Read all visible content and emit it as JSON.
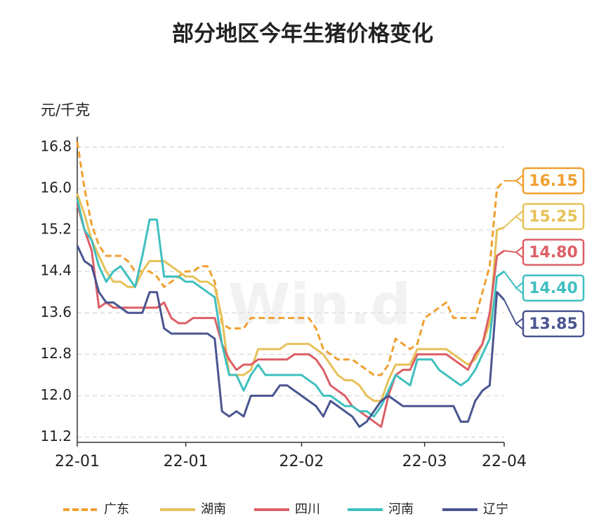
{
  "chart_data": {
    "type": "line",
    "title": "部分地区今年生猪价格变化",
    "y_label": "元/千克",
    "watermark": "Win.d",
    "categories": [
      "22-01",
      null,
      null,
      null,
      null,
      null,
      null,
      null,
      null,
      null,
      null,
      null,
      null,
      null,
      null,
      "22-01",
      null,
      null,
      null,
      null,
      null,
      null,
      null,
      null,
      null,
      null,
      null,
      null,
      null,
      null,
      null,
      "22-02",
      null,
      null,
      null,
      null,
      null,
      null,
      null,
      null,
      null,
      null,
      null,
      null,
      null,
      null,
      null,
      null,
      "22-03",
      null,
      null,
      null,
      null,
      null,
      null,
      null,
      null,
      null,
      null,
      "22-04"
    ],
    "ylim": [
      11.1,
      17.0
    ],
    "yticks": [
      11.2,
      {
        "value": 12,
        "label": "12.0"
      },
      12.8,
      13.6,
      14.4,
      15.2,
      {
        "value": 16,
        "label": "16.0"
      },
      16.8
    ],
    "grid": true,
    "legend": "bottom",
    "series": [
      {
        "name": "广东",
        "color": "#f0a030",
        "dash": true,
        "values": [
          16.9,
          16.0,
          15.3,
          14.9,
          14.7,
          14.7,
          14.7,
          14.6,
          14.4,
          14.4,
          14.4,
          14.3,
          14.1,
          14.2,
          14.3,
          14.4,
          14.4,
          14.5,
          14.5,
          14.2,
          13.4,
          13.3,
          13.3,
          13.3,
          13.5,
          13.5,
          13.5,
          13.5,
          13.5,
          13.5,
          13.5,
          13.5,
          13.5,
          13.3,
          12.9,
          12.8,
          12.7,
          12.7,
          12.7,
          12.6,
          12.5,
          12.4,
          12.4,
          12.6,
          13.1,
          13.0,
          12.9,
          13.0,
          13.5,
          13.6,
          13.7,
          13.8,
          13.5,
          13.5,
          13.5,
          13.5,
          14.0,
          14.5,
          16.0,
          16.15
        ],
        "value_labels": [
          null,
          null,
          null,
          null,
          null,
          null,
          null,
          null,
          null,
          null,
          null,
          null,
          null,
          null,
          null,
          null,
          null,
          null,
          null,
          null,
          null,
          null,
          null,
          null,
          null,
          null,
          null,
          null,
          null,
          null,
          null,
          null,
          null,
          null,
          null,
          null,
          null,
          null,
          null,
          null,
          null,
          null,
          null,
          null,
          null,
          null,
          null,
          null,
          null,
          null,
          null,
          null,
          null,
          null,
          null,
          null,
          null,
          null,
          null,
          "16.15"
        ]
      },
      {
        "name": "湖南",
        "color": "#e6c158",
        "dash": false,
        "values": [
          15.9,
          15.5,
          15.0,
          14.7,
          14.4,
          14.2,
          14.2,
          14.1,
          14.1,
          14.4,
          14.6,
          14.6,
          14.6,
          14.5,
          14.4,
          14.3,
          14.3,
          14.2,
          14.2,
          14.1,
          13.5,
          12.4,
          12.4,
          12.4,
          12.5,
          12.9,
          12.9,
          12.9,
          12.9,
          13.0,
          13.0,
          13.0,
          13.0,
          12.9,
          12.8,
          12.6,
          12.4,
          12.3,
          12.3,
          12.2,
          12.0,
          11.9,
          11.9,
          12.3,
          12.6,
          12.6,
          12.6,
          12.9,
          12.9,
          12.9,
          12.9,
          12.9,
          12.8,
          12.7,
          12.6,
          12.7,
          13.0,
          13.4,
          15.2,
          15.25
        ],
        "value_labels": [
          null,
          null,
          null,
          null,
          null,
          null,
          null,
          null,
          null,
          null,
          null,
          null,
          null,
          null,
          null,
          null,
          null,
          null,
          null,
          null,
          null,
          null,
          null,
          null,
          null,
          null,
          null,
          null,
          null,
          null,
          null,
          null,
          null,
          null,
          null,
          null,
          null,
          null,
          null,
          null,
          null,
          null,
          null,
          null,
          null,
          null,
          null,
          null,
          null,
          null,
          null,
          null,
          null,
          null,
          null,
          null,
          null,
          null,
          null,
          "15.25"
        ]
      },
      {
        "name": "四川",
        "color": "#dc5f66",
        "dash": false,
        "values": [
          15.7,
          15.2,
          14.8,
          13.7,
          13.8,
          13.7,
          13.7,
          13.7,
          13.7,
          13.7,
          13.7,
          13.7,
          13.8,
          13.5,
          13.4,
          13.4,
          13.5,
          13.5,
          13.5,
          13.5,
          13.0,
          12.7,
          12.5,
          12.6,
          12.6,
          12.7,
          12.7,
          12.7,
          12.7,
          12.7,
          12.8,
          12.8,
          12.8,
          12.7,
          12.5,
          12.2,
          12.1,
          12.0,
          11.8,
          11.7,
          11.6,
          11.5,
          11.4,
          12.0,
          12.4,
          12.5,
          12.5,
          12.8,
          12.8,
          12.8,
          12.8,
          12.8,
          12.7,
          12.6,
          12.5,
          12.8,
          13.0,
          13.6,
          14.7,
          14.8
        ],
        "value_labels": [
          null,
          null,
          null,
          null,
          null,
          null,
          null,
          null,
          null,
          null,
          null,
          null,
          null,
          null,
          null,
          null,
          null,
          null,
          null,
          null,
          null,
          null,
          null,
          null,
          null,
          null,
          null,
          null,
          null,
          null,
          null,
          null,
          null,
          null,
          null,
          null,
          null,
          null,
          null,
          null,
          null,
          null,
          null,
          null,
          null,
          null,
          null,
          null,
          null,
          null,
          null,
          null,
          null,
          null,
          null,
          null,
          null,
          null,
          null,
          "14.80"
        ]
      },
      {
        "name": "河南",
        "color": "#3fbfbf",
        "dash": false,
        "values": [
          15.8,
          15.2,
          15.0,
          14.5,
          14.2,
          14.4,
          14.5,
          14.3,
          14.1,
          14.7,
          15.4,
          15.4,
          14.3,
          14.3,
          14.3,
          14.2,
          14.2,
          14.1,
          14.0,
          13.9,
          13.0,
          12.4,
          12.4,
          12.1,
          12.4,
          12.6,
          12.4,
          12.4,
          12.4,
          12.4,
          12.4,
          12.4,
          12.3,
          12.2,
          12.0,
          12.0,
          11.9,
          11.8,
          11.8,
          11.7,
          11.7,
          11.6,
          11.8,
          12.1,
          12.4,
          12.3,
          12.2,
          12.7,
          12.7,
          12.7,
          12.5,
          12.4,
          12.3,
          12.2,
          12.3,
          12.5,
          12.8,
          13.1,
          14.3,
          14.4
        ],
        "value_labels": [
          null,
          null,
          null,
          null,
          null,
          null,
          null,
          null,
          null,
          null,
          null,
          null,
          null,
          null,
          null,
          null,
          null,
          null,
          null,
          null,
          null,
          null,
          null,
          null,
          null,
          null,
          null,
          null,
          null,
          null,
          null,
          null,
          null,
          null,
          null,
          null,
          null,
          null,
          null,
          null,
          null,
          null,
          null,
          null,
          null,
          null,
          null,
          null,
          null,
          null,
          null,
          null,
          null,
          null,
          null,
          null,
          null,
          null,
          null,
          "14.40"
        ]
      },
      {
        "name": "辽宁",
        "color": "#4a5590",
        "dash": false,
        "values": [
          14.9,
          14.6,
          14.5,
          14.0,
          13.8,
          13.8,
          13.7,
          13.6,
          13.6,
          13.6,
          14.0,
          14.0,
          13.3,
          13.2,
          13.2,
          13.2,
          13.2,
          13.2,
          13.2,
          13.1,
          11.7,
          11.6,
          11.7,
          11.6,
          12.0,
          12.0,
          12.0,
          12.0,
          12.2,
          12.2,
          12.1,
          12.0,
          11.9,
          11.8,
          11.6,
          11.9,
          11.8,
          11.7,
          11.6,
          11.4,
          11.5,
          11.7,
          11.9,
          12.0,
          11.9,
          11.8,
          11.8,
          11.8,
          11.8,
          11.8,
          11.8,
          11.8,
          11.8,
          11.5,
          11.5,
          11.9,
          12.1,
          12.2,
          14.0,
          13.85
        ],
        "value_labels": [
          null,
          null,
          null,
          null,
          null,
          null,
          null,
          null,
          null,
          null,
          null,
          null,
          null,
          null,
          null,
          null,
          null,
          null,
          null,
          null,
          null,
          null,
          null,
          null,
          null,
          null,
          null,
          null,
          null,
          null,
          null,
          null,
          null,
          null,
          null,
          null,
          null,
          null,
          null,
          null,
          null,
          null,
          null,
          null,
          null,
          null,
          null,
          null,
          null,
          null,
          null,
          null,
          null,
          null,
          null,
          null,
          null,
          null,
          null,
          "13.85"
        ]
      }
    ]
  }
}
